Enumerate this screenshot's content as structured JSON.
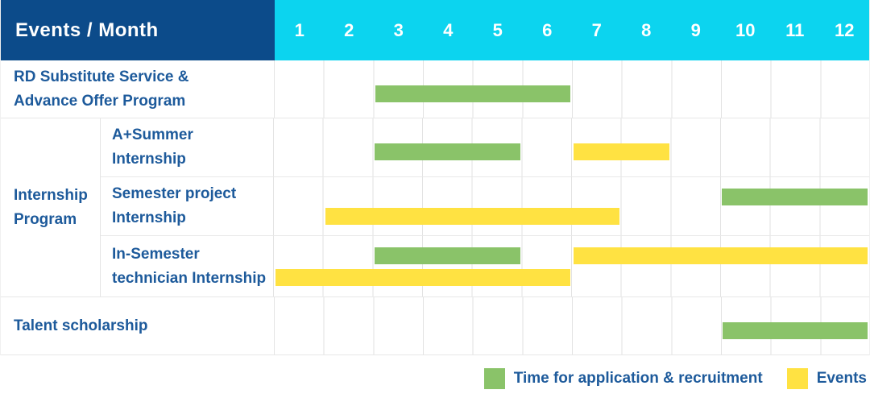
{
  "colors": {
    "navy": "#0c4b8a",
    "cyan": "#0cd4ef",
    "green": "#8ac369",
    "yellow": "#ffe242",
    "label_blue": "#1d5a9b",
    "border_gray": "#e8e8e8"
  },
  "header": {
    "corner_label": "Events / Month",
    "months": [
      "1",
      "2",
      "3",
      "4",
      "5",
      "6",
      "7",
      "8",
      "9",
      "10",
      "11",
      "12"
    ]
  },
  "rows": {
    "rd": {
      "lines": [
        "RD Substitute Service &",
        "Advance Offer Program"
      ]
    },
    "group": {
      "lines": [
        "Internship",
        "Program"
      ]
    },
    "summer": {
      "lines": [
        "A+Summer",
        "Internship"
      ]
    },
    "semester_project": {
      "lines": [
        "Semester project",
        "Internship"
      ]
    },
    "in_semester": {
      "lines": [
        "In-Semester",
        "technician Internship"
      ]
    },
    "talent": {
      "lines": [
        "Talent scholarship"
      ]
    }
  },
  "legend": {
    "items": [
      {
        "key": "application",
        "label": "Time for application & recruitment",
        "color": "#8ac369"
      },
      {
        "key": "events",
        "label": "Events",
        "color": "#ffe242"
      }
    ]
  },
  "chart_data": {
    "type": "bar",
    "subtype": "gantt-timeline",
    "x_axis": {
      "label": "Month",
      "ticks": [
        1,
        2,
        3,
        4,
        5,
        6,
        7,
        8,
        9,
        10,
        11,
        12
      ],
      "range": [
        1,
        12
      ]
    },
    "legend_position": "bottom-right",
    "grid": "vertical-month-lines",
    "series_colors": {
      "application": "#8ac369",
      "events": "#ffe242"
    },
    "rows": [
      {
        "id": "rd",
        "group": null,
        "label": "RD Substitute Service & Advance Offer Program",
        "bars": [
          {
            "series": "application",
            "start_month": 3,
            "end_month": 6,
            "lane": "middle"
          }
        ]
      },
      {
        "id": "summer",
        "group": "Internship Program",
        "label": "A+Summer Internship",
        "bars": [
          {
            "series": "application",
            "start_month": 3,
            "end_month": 5,
            "lane": "middle"
          },
          {
            "series": "events",
            "start_month": 7,
            "end_month": 8,
            "lane": "middle"
          }
        ]
      },
      {
        "id": "semester_project",
        "group": "Internship Program",
        "label": "Semester project Internship",
        "bars": [
          {
            "series": "application",
            "start_month": 10,
            "end_month": 12,
            "lane": "upper"
          },
          {
            "series": "events",
            "start_month": 2,
            "end_month": 7,
            "lane": "lower"
          }
        ]
      },
      {
        "id": "in_semester",
        "group": "Internship Program",
        "label": "In-Semester technician Internship",
        "bars": [
          {
            "series": "application",
            "start_month": 3,
            "end_month": 5,
            "lane": "upper"
          },
          {
            "series": "events",
            "start_month": 7,
            "end_month": 12,
            "lane": "upper"
          },
          {
            "series": "events",
            "start_month": 1,
            "end_month": 6,
            "lane": "lower"
          }
        ]
      },
      {
        "id": "talent",
        "group": null,
        "label": "Talent scholarship",
        "bars": [
          {
            "series": "application",
            "start_month": 10,
            "end_month": 12,
            "lane": "middle"
          }
        ]
      }
    ]
  }
}
